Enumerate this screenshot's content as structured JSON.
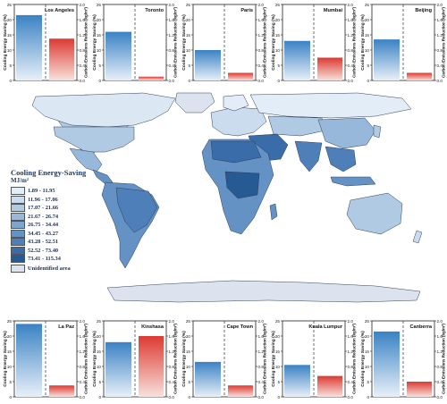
{
  "chart_data": [
    {
      "type": "bar",
      "title": "Los Angeles",
      "categories": [
        "Cooling Energy Saving",
        "Carbon Emissions Reduction"
      ],
      "values": [
        21.5,
        1.1
      ],
      "ylabel_left": "Cooling Energy Saving (%)",
      "ylabel_right": "Carbon Emissions Reduction (kg/m²)",
      "ylim_left": [
        0,
        25
      ],
      "ylim_right": [
        0,
        2.0
      ],
      "yticks_left": [
        "0",
        "5",
        "10",
        "15",
        "20",
        "25"
      ],
      "yticks_right": [
        "0.0",
        "0.4",
        "0.8",
        "1.2",
        "1.6",
        "2.0"
      ]
    },
    {
      "type": "bar",
      "title": "Toronto",
      "categories": [
        "Cooling Energy Saving",
        "Carbon Emissions Reduction"
      ],
      "values": [
        16,
        0.1
      ],
      "ylabel_left": "Cooling Energy Saving (%)",
      "ylabel_right": "Carbon Emissions Reduction (kg/m²)",
      "ylim_left": [
        0,
        25
      ],
      "ylim_right": [
        0,
        2.0
      ],
      "yticks_left": [
        "0",
        "5",
        "10",
        "15",
        "20",
        "25"
      ],
      "yticks_right": [
        "0.0",
        "0.4",
        "0.8",
        "1.2",
        "1.6",
        "2.0"
      ]
    },
    {
      "type": "bar",
      "title": "Paris",
      "categories": [
        "Cooling Energy Saving",
        "Carbon Emissions Reduction"
      ],
      "values": [
        10,
        0.2
      ],
      "ylabel_left": "Cooling Energy Saving (%)",
      "ylabel_right": "Carbon Emissions Reduction (kg/m²)",
      "ylim_left": [
        0,
        25
      ],
      "ylim_right": [
        0,
        2.0
      ],
      "yticks_left": [
        "0",
        "5",
        "10",
        "15",
        "20",
        "25"
      ],
      "yticks_right": [
        "0.0",
        "0.4",
        "0.8",
        "1.2",
        "1.6",
        "2.0"
      ]
    },
    {
      "type": "bar",
      "title": "Mumbai",
      "categories": [
        "Cooling Energy Saving",
        "Carbon Emissions Reduction"
      ],
      "values": [
        13,
        0.6
      ],
      "ylabel_left": "Cooling Energy Saving (%)",
      "ylabel_right": "Carbon Emissions Reduction (kg/m²)",
      "ylim_left": [
        0,
        25
      ],
      "ylim_right": [
        0,
        2.0
      ],
      "yticks_left": [
        "0",
        "5",
        "10",
        "15",
        "20",
        "25"
      ],
      "yticks_right": [
        "0.0",
        "0.4",
        "0.8",
        "1.2",
        "1.6",
        "2.0"
      ]
    },
    {
      "type": "bar",
      "title": "Beijing",
      "categories": [
        "Cooling Energy Saving",
        "Carbon Emissions Reduction"
      ],
      "values": [
        13.5,
        0.2
      ],
      "ylabel_left": "Cooling Energy Saving (%)",
      "ylabel_right": "Carbon Emissions Reduction (kg/m²)",
      "ylim_left": [
        0,
        25
      ],
      "ylim_right": [
        0,
        2.0
      ],
      "yticks_left": [
        "0",
        "5",
        "10",
        "15",
        "20",
        "25"
      ],
      "yticks_right": [
        "0.0",
        "0.4",
        "0.8",
        "1.2",
        "1.6",
        "2.0"
      ]
    },
    {
      "type": "bar",
      "title": "La Paz",
      "categories": [
        "Cooling Energy Saving",
        "Carbon Emissions Reduction"
      ],
      "values": [
        24,
        0.3
      ],
      "ylabel_left": "Cooling Energy Saving (%)",
      "ylabel_right": "Carbon Emissions Reduction (kg/m²)",
      "ylim_left": [
        0,
        25
      ],
      "ylim_right": [
        0,
        2.0
      ],
      "yticks_left": [
        "0",
        "5",
        "10",
        "15",
        "20",
        "25"
      ],
      "yticks_right": [
        "0.0",
        "0.4",
        "0.8",
        "1.2",
        "1.6",
        "2.0"
      ]
    },
    {
      "type": "bar",
      "title": "Kinshasa",
      "categories": [
        "Cooling Energy Saving",
        "Carbon Emissions Reduction"
      ],
      "values": [
        18,
        1.6
      ],
      "ylabel_left": "Cooling Energy Saving (%)",
      "ylabel_right": "Carbon Emissions Reduction (kg/m²)",
      "ylim_left": [
        0,
        25
      ],
      "ylim_right": [
        0,
        2.0
      ],
      "yticks_left": [
        "0",
        "5",
        "10",
        "15",
        "20",
        "25"
      ],
      "yticks_right": [
        "0.0",
        "0.4",
        "0.8",
        "1.2",
        "1.6",
        "2.0"
      ]
    },
    {
      "type": "bar",
      "title": "Cape Town",
      "categories": [
        "Cooling Energy Saving",
        "Carbon Emissions Reduction"
      ],
      "values": [
        11.5,
        0.3
      ],
      "ylabel_left": "Cooling Energy Saving (%)",
      "ylabel_right": "Carbon Emissions Reduction (kg/m²)",
      "ylim_left": [
        0,
        25
      ],
      "ylim_right": [
        0,
        2.0
      ],
      "yticks_left": [
        "0",
        "5",
        "10",
        "15",
        "20",
        "25"
      ],
      "yticks_right": [
        "0.0",
        "0.4",
        "0.8",
        "1.2",
        "1.6",
        "2.0"
      ]
    },
    {
      "type": "bar",
      "title": "Kuala Lumpur",
      "categories": [
        "Cooling Energy Saving",
        "Carbon Emissions Reduction"
      ],
      "values": [
        10.5,
        0.55
      ],
      "ylabel_left": "Cooling Energy Saving (%)",
      "ylabel_right": "Carbon Emissions Reduction (kg/m²)",
      "ylim_left": [
        0,
        25
      ],
      "ylim_right": [
        0,
        2.0
      ],
      "yticks_left": [
        "0",
        "5",
        "10",
        "15",
        "20",
        "25"
      ],
      "yticks_right": [
        "0.0",
        "0.4",
        "0.8",
        "1.2",
        "1.6",
        "2.0"
      ]
    },
    {
      "type": "bar",
      "title": "Canberra",
      "categories": [
        "Cooling Energy Saving",
        "Carbon Emissions Reduction"
      ],
      "values": [
        21.5,
        0.4
      ],
      "ylabel_left": "Cooling Energy Saving (%)",
      "ylabel_right": "Carbon Emissions Reduction (kg/m²)",
      "ylim_left": [
        0,
        25
      ],
      "ylim_right": [
        0,
        2.0
      ],
      "yticks_left": [
        "0",
        "5",
        "10",
        "15",
        "20",
        "25"
      ],
      "yticks_right": [
        "0.0",
        "0.4",
        "0.8",
        "1.2",
        "1.6",
        "2.0"
      ]
    }
  ],
  "map": {
    "legend_title": "Cooling Energy-Saving",
    "legend_unit": "MJ/m²",
    "classes": [
      {
        "label": "1.89 - 11.95",
        "color": "#e3edf7"
      },
      {
        "label": "11.96 - 17.06",
        "color": "#cadcee"
      },
      {
        "label": "17.07 - 21.66",
        "color": "#b1cae4"
      },
      {
        "label": "21.67 - 26.74",
        "color": "#97b8da"
      },
      {
        "label": "26.75 - 34.44",
        "color": "#7ea5cf"
      },
      {
        "label": "34.45 - 43.27",
        "color": "#6592c4"
      },
      {
        "label": "43.28 - 52.51",
        "color": "#4e7fb8"
      },
      {
        "label": "52.52 - 73.40",
        "color": "#396ca8"
      },
      {
        "label": "73.41 - 115.34",
        "color": "#275993"
      }
    ],
    "unidentified_label": "Unidentified area",
    "unidentified_color": "#dde3ee"
  },
  "colors": {
    "energy_bar": "#3a82c4",
    "carbon_bar": "#dc3a32",
    "ocean": "#ffffff",
    "border": "#2f3e57"
  }
}
